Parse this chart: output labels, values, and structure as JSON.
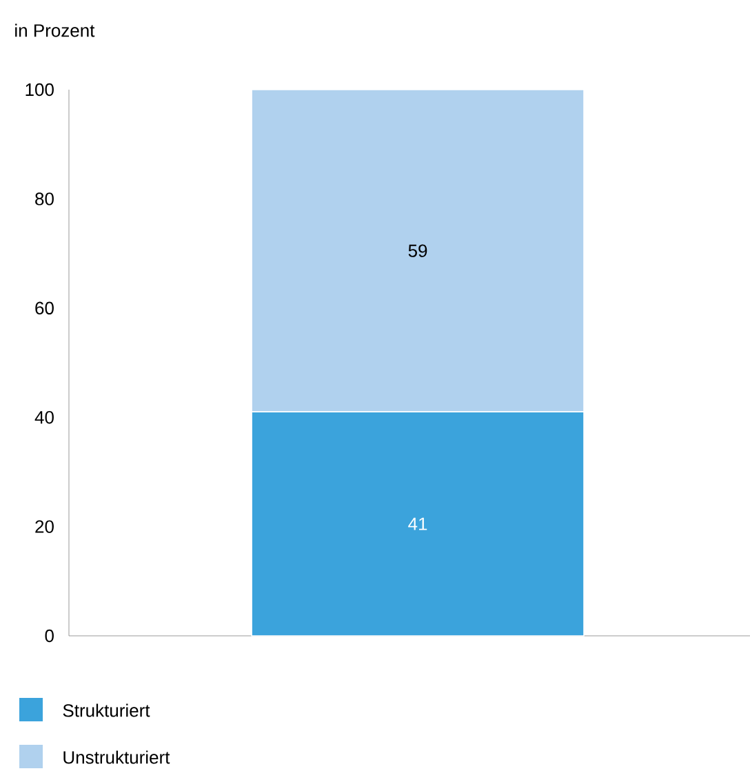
{
  "chart_data": {
    "type": "bar",
    "stacked": true,
    "ylabel": "in Prozent",
    "categories": [
      null
    ],
    "series": [
      {
        "name": "Strukturiert",
        "color": "#3ba3dc",
        "values": [
          41
        ]
      },
      {
        "name": "Unstrukturiert",
        "color": "#b0d1ee",
        "values": [
          59
        ]
      }
    ],
    "ylim": [
      0,
      100
    ],
    "yticks": [
      0,
      20,
      40,
      60,
      80,
      100
    ],
    "data_labels": true,
    "legend": "bottom"
  }
}
